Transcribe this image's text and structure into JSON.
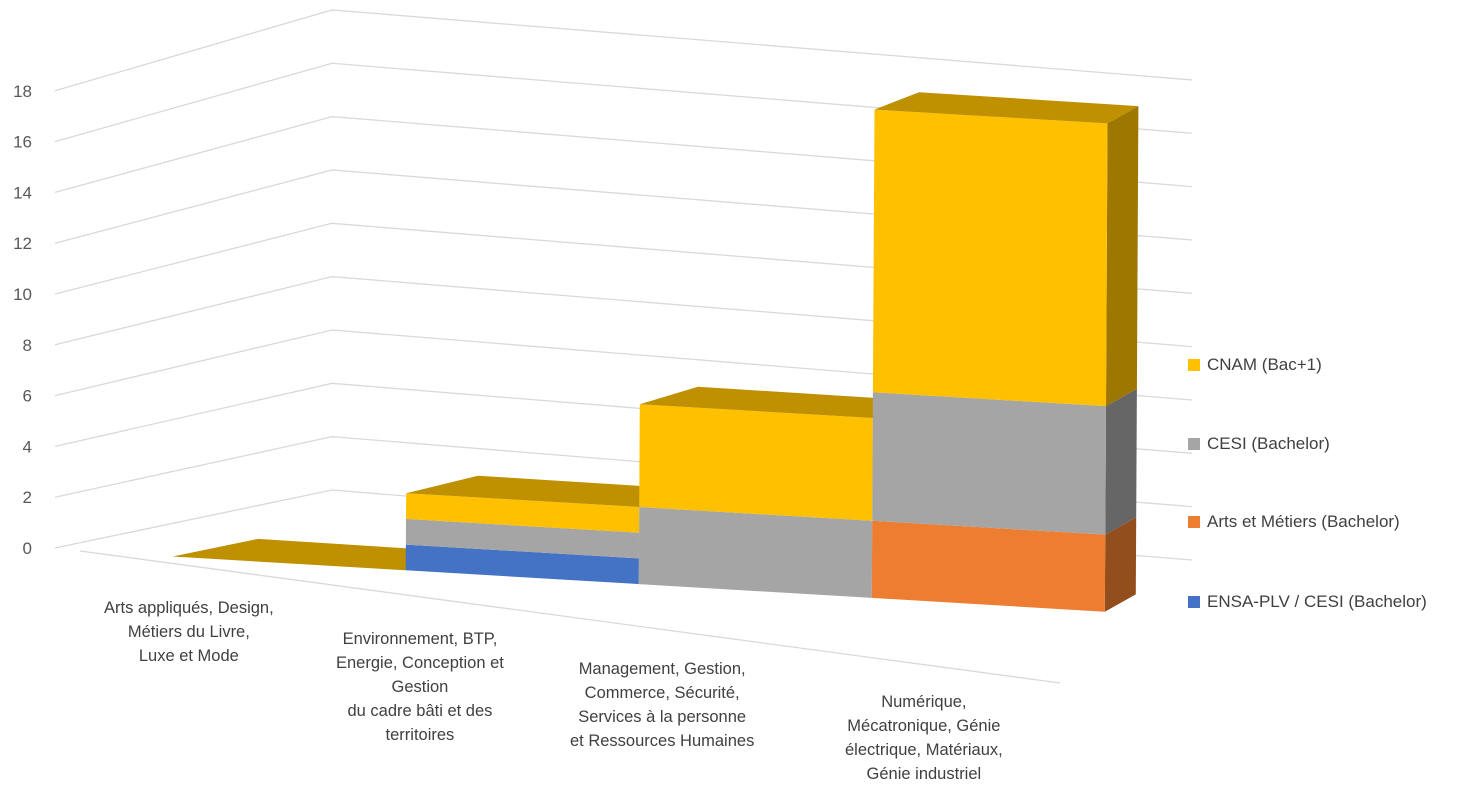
{
  "chart_data": {
    "type": "bar",
    "subtype": "3d-stacked-column",
    "title": "",
    "xlabel": "",
    "ylabel": "",
    "ylim": [
      0,
      18
    ],
    "yticks": [
      "0",
      "2",
      "4",
      "6",
      "8",
      "10",
      "12",
      "14",
      "16",
      "18"
    ],
    "grid": true,
    "legend_position": "right",
    "categories": [
      "Arts appliqués, Design, Métiers du Livre, Luxe et Mode",
      "Environnement, BTP, Energie, Conception et Gestion du cadre bâti et des territoires",
      "Management, Gestion, Commerce, Sécurité, Services à la personne et Ressources Humaines",
      "Numérique, Mécatronique, Génie électrique, Matériaux, Génie industriel"
    ],
    "category_lines": [
      [
        "Arts appliqués, Design,",
        "Métiers du Livre,",
        "Luxe et Mode"
      ],
      [
        "Environnement, BTP,",
        "Energie, Conception et",
        "Gestion",
        "du cadre bâti et des",
        "territoires"
      ],
      [
        "Management, Gestion,",
        "Commerce, Sécurité,",
        "Services à la personne",
        "et Ressources Humaines"
      ],
      [
        "Numérique,",
        "Mécatronique, Génie",
        "électrique, Matériaux,",
        "Génie industriel"
      ]
    ],
    "series": [
      {
        "name": "ENSA-PLV / CESI (Bachelor)",
        "color": "#4472C4",
        "values": [
          0,
          1,
          0,
          0
        ]
      },
      {
        "name": "Arts et Métiers (Bachelor)",
        "color": "#ED7D31",
        "values": [
          0,
          0,
          0,
          3
        ]
      },
      {
        "name": "CESI (Bachelor)",
        "color": "#A5A5A5",
        "values": [
          0,
          1,
          3,
          5
        ]
      },
      {
        "name": "CNAM (Bac+1)",
        "color": "#FFC000",
        "values": [
          0,
          1,
          4,
          11
        ]
      }
    ],
    "legend_order": [
      "CNAM (Bac+1)",
      "CESI (Bachelor)",
      "Arts et Métiers (Bachelor)",
      "ENSA-PLV / CESI (Bachelor)"
    ],
    "top_face_color": "#BF9000"
  }
}
